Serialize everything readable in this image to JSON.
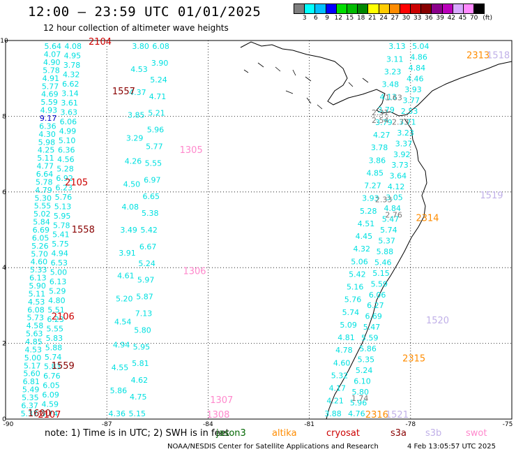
{
  "header": {
    "title": "12:00 – 23:59 UTC 01/01/2025",
    "subtitle": "12 hour collection of altimeter wave heights"
  },
  "colorbar": {
    "unit": "(ft)",
    "colors": [
      "#7f7f7f",
      "#00ffff",
      "#00bfff",
      "#0000ff",
      "#00dd00",
      "#00bb00",
      "#008800",
      "#ffff00",
      "#ffcc00",
      "#ff8c00",
      "#ff0000",
      "#cc0000",
      "#880000",
      "#8b008b",
      "#bb00bb",
      "#d8a8ff",
      "#ff88ff",
      "#000000"
    ],
    "ticks": [
      "3",
      "6",
      "9",
      "12",
      "15",
      "18",
      "21",
      "24",
      "27",
      "30",
      "33",
      "36",
      "39",
      "42",
      "45",
      "70"
    ]
  },
  "map": {
    "lon_range": [
      -90,
      -75
    ],
    "lat_range": [
      0,
      10
    ],
    "x_ticks": [
      "-90",
      "-87",
      "-84",
      "-81",
      "-78",
      "-75"
    ],
    "y_ticks": [
      "0",
      "2",
      "4",
      "6",
      "8",
      "10"
    ],
    "grid": "dotted"
  },
  "tracks": [
    {
      "satellite": "sentinel-3b (2104)",
      "color": "#00e0e0",
      "x_lon": -88.6,
      "values": [
        "5.64",
        "4.07",
        "4.90",
        "5.78",
        "4.91",
        "5.77",
        "4.69",
        "5.59",
        "4.93",
        "9.17",
        "6.36",
        "4.30",
        "5.98",
        "4.25",
        "5.11",
        "4.77",
        "6.64",
        "5.78",
        "4.79",
        "5.30",
        "5.55",
        "5.02",
        "5.84",
        "6.69",
        "6.05",
        "5.26",
        "5.70",
        "4.60",
        "5.33",
        "6.13",
        "5.90",
        "5.11",
        "4.53",
        "6.08",
        "5.73",
        "4.58",
        "5.63",
        "4.85",
        "4.53",
        "5.00",
        "5.17",
        "5.60",
        "6.81",
        "5.49",
        "5.35",
        "6.37",
        "5.37"
      ]
    },
    {
      "satellite": "second track",
      "color": "#00e0e0",
      "x_lon": -88.0,
      "values": [
        "4.08",
        "4.95",
        "3.78",
        "4.32",
        "6.62",
        "3.14",
        "3.61",
        "3.63",
        "6.06",
        "4.99",
        "5.10",
        "6.36",
        "4.56",
        "5.28",
        "6.92",
        "6.23",
        "5.76",
        "5.13",
        "5.95",
        "5.78",
        "5.41",
        "5.75",
        "4.94",
        "6.53",
        "5.00",
        "6.13",
        "5.29",
        "4.80",
        "5.51",
        "6.23",
        "5.55",
        "5.83",
        "5.88",
        "5.74",
        "5.83",
        "6.76",
        "6.05",
        "6.09",
        "4.59",
        "5.74"
      ]
    },
    {
      "satellite": "jason-3 (1305)",
      "color": "#00e0e0",
      "x_lon": -86.0,
      "values": [
        "3.80",
        "4.53",
        "4.37",
        "3.85",
        "3.29",
        "4.26",
        "4.50",
        "4.08",
        "3.49",
        "3.91",
        "4.61",
        "5.20",
        "4.54",
        "4.94",
        "4.55",
        "5.86",
        "4.36"
      ]
    },
    {
      "satellite": "jason-3 (1306)",
      "color": "#00e0e0",
      "x_lon": -85.4,
      "values": [
        "6.08",
        "3.90",
        "5.24",
        "4.71",
        "5.21",
        "5.96",
        "5.77",
        "5.55",
        "6.97",
        "6.65",
        "5.38",
        "5.42",
        "6.67",
        "5.24",
        "5.97",
        "5.87",
        "7.13",
        "5.80",
        "5.95",
        "5.81",
        "4.62",
        "4.75",
        "5.15"
      ]
    },
    {
      "satellite": "east track",
      "color": "#00e0e0",
      "x_lon": -78.4,
      "values": [
        "3.13",
        "3.11",
        "3.23",
        "3.48",
        "4.13",
        "3.79",
        "3.79",
        "4.27",
        "3.78",
        "3.86",
        "4.85",
        "7.27",
        "3.93",
        "5.28",
        "4.51",
        "4.45",
        "4.32",
        "5.06",
        "5.42",
        "5.16",
        "5.76",
        "5.74",
        "5.09",
        "4.81",
        "4.78",
        "4.60",
        "5.32",
        "4.17",
        "4.21",
        "3.88"
      ]
    },
    {
      "satellite": "east track 2",
      "color": "#00e0e0",
      "x_lon": -77.7,
      "values": [
        "5.04",
        "4.86",
        "4.84",
        "4.46",
        "3.93",
        "3.77",
        "2.53",
        "3.71",
        "3.23",
        "3.37",
        "3.92",
        "3.73",
        "3.64",
        "4.12",
        "3.05",
        "4.84",
        "5.47",
        "5.74",
        "5.37",
        "5.88",
        "5.46",
        "5.15",
        "5.59",
        "6.06",
        "6.27",
        "6.69",
        "5.47",
        "5.59",
        "5.86",
        "5.35",
        "5.24",
        "6.10",
        "5.80",
        "5.96",
        "4.76"
      ]
    }
  ],
  "pass_labels": [
    {
      "text": "2104",
      "color": "#cc0000",
      "lon": -87.2,
      "lat": 10.0
    },
    {
      "text": "1557",
      "color": "#880000",
      "lon": -86.5,
      "lat": 8.65
    },
    {
      "text": "1305",
      "color": "#ff88cc",
      "lon": -84.5,
      "lat": 7.1
    },
    {
      "text": "2105",
      "color": "#cc0000",
      "lon": -87.9,
      "lat": 6.25
    },
    {
      "text": "1558",
      "color": "#880000",
      "lon": -87.7,
      "lat": 5.0
    },
    {
      "text": "1306",
      "color": "#ff88cc",
      "lon": -84.4,
      "lat": 3.9
    },
    {
      "text": "2106",
      "color": "#cc0000",
      "lon": -88.3,
      "lat": 2.7
    },
    {
      "text": "1559",
      "color": "#880000",
      "lon": -88.3,
      "lat": 1.4
    },
    {
      "text": "1600",
      "color": "#880000",
      "lon": -89.0,
      "lat": 0.15
    },
    {
      "text": "2107",
      "color": "#cc0000",
      "lon": -88.7,
      "lat": 0.05
    },
    {
      "text": "1307",
      "color": "#ff88cc",
      "lon": -83.6,
      "lat": 0.5
    },
    {
      "text": "1308",
      "color": "#ff88cc",
      "lon": -83.7,
      "lat": -0.05
    },
    {
      "text": "2313",
      "color": "#ff8c00",
      "lon": -76.0,
      "lat": 9.6
    },
    {
      "text": "1518",
      "color": "#c0b0e8",
      "lon": -75.4,
      "lat": 9.6
    },
    {
      "text": "1519",
      "color": "#c0b0e8",
      "lon": -75.6,
      "lat": 5.9
    },
    {
      "text": "2314",
      "color": "#ff8c00",
      "lon": -77.5,
      "lat": 5.3
    },
    {
      "text": "1520",
      "color": "#c0b0e8",
      "lon": -77.2,
      "lat": 2.6
    },
    {
      "text": "2315",
      "color": "#ff8c00",
      "lon": -77.9,
      "lat": 1.6
    },
    {
      "text": "1521",
      "color": "#c0b0e8",
      "lon": -78.4,
      "lat": 0.05
    },
    {
      "text": "2316",
      "color": "#ff8c00",
      "lon": -79.0,
      "lat": -0.05
    }
  ],
  "extra_values": [
    {
      "text": "1.63",
      "color": "#777777",
      "lon": -78.5,
      "lat": 8.5
    },
    {
      "text": "2.31",
      "color": "#777777",
      "lon": -78.9,
      "lat": 8.1
    },
    {
      "text": "2.54",
      "color": "#777777",
      "lon": -78.9,
      "lat": 7.9
    },
    {
      "text": "2.73",
      "color": "#777777",
      "lon": -78.3,
      "lat": 7.85
    },
    {
      "text": "2.33",
      "color": "#777777",
      "lon": -78.8,
      "lat": 5.8
    },
    {
      "text": "2.76",
      "color": "#777777",
      "lon": -78.5,
      "lat": 5.4
    },
    {
      "text": "1.74",
      "color": "#777777",
      "lon": -79.5,
      "lat": 0.55
    }
  ],
  "footer": {
    "note": "note: 1) Time is in UTC; 2) SWH is in feet",
    "legend": [
      {
        "name": "jason3",
        "color": "#006600"
      },
      {
        "name": "altika",
        "color": "#ff8c00"
      },
      {
        "name": "cryosat",
        "color": "#cc0000"
      },
      {
        "name": "s3a",
        "color": "#880000"
      },
      {
        "name": "s3b",
        "color": "#c0b0e8"
      },
      {
        "name": "swot",
        "color": "#ff88cc"
      }
    ],
    "credit": "NOAA/NESDIS Center for Satellite Applications and Research",
    "timestamp": "4 Feb 13:05:57 UTC 2025"
  }
}
